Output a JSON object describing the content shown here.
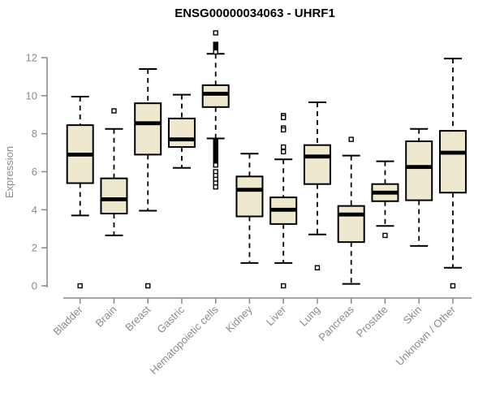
{
  "chart_data": {
    "type": "boxplot",
    "title": "ENSG00000034063 - UHRF1",
    "ylabel": "Expression",
    "xlabel": "",
    "ylim": [
      0,
      12
    ],
    "yticks": [
      0,
      2,
      4,
      6,
      8,
      10,
      12
    ],
    "grid": false,
    "legend": "none",
    "categories": [
      "Bladder",
      "Brain",
      "Breast",
      "Gastric",
      "Hematopoietic cells",
      "Kidney",
      "Liver",
      "Lung",
      "Pancreas",
      "Prostate",
      "Skin",
      "Unknown / Other"
    ],
    "series": [
      {
        "name": "Bladder",
        "whisker_low": 3.7,
        "q1": 5.4,
        "median": 6.9,
        "q3": 8.45,
        "whisker_high": 9.95,
        "outliers": [
          0
        ]
      },
      {
        "name": "Brain",
        "whisker_low": 2.65,
        "q1": 3.8,
        "median": 4.55,
        "q3": 5.65,
        "whisker_high": 8.25,
        "outliers": [
          9.2
        ]
      },
      {
        "name": "Breast",
        "whisker_low": 3.95,
        "q1": 6.9,
        "median": 8.55,
        "q3": 9.6,
        "whisker_high": 11.4,
        "outliers": [
          0
        ]
      },
      {
        "name": "Gastric",
        "whisker_low": 6.2,
        "q1": 7.3,
        "median": 7.7,
        "q3": 8.8,
        "whisker_high": 10.05,
        "outliers": []
      },
      {
        "name": "Hematopoietic cells",
        "whisker_low": 7.75,
        "q1": 9.4,
        "median": 10.1,
        "q3": 10.55,
        "whisker_high": 12.2,
        "outliers": [
          13.3,
          12.7,
          12.65,
          12.6,
          12.55,
          12.5,
          12.45,
          12.4,
          12.35,
          12.3,
          7.6,
          7.55,
          7.5,
          7.45,
          7.4,
          7.35,
          7.3,
          7.25,
          7.2,
          7.15,
          7.1,
          7.05,
          7.0,
          6.95,
          6.9,
          6.85,
          6.8,
          6.75,
          6.7,
          6.65,
          6.6,
          6.55,
          6.5,
          6.45,
          6.4,
          6.35,
          6.0,
          5.8,
          5.6,
          5.4,
          5.2
        ]
      },
      {
        "name": "Kidney",
        "whisker_low": 1.2,
        "q1": 3.65,
        "median": 5.05,
        "q3": 5.75,
        "whisker_high": 6.95,
        "outliers": []
      },
      {
        "name": "Liver",
        "whisker_low": 1.2,
        "q1": 3.25,
        "median": 4.0,
        "q3": 4.65,
        "whisker_high": 6.65,
        "outliers": [
          8.95,
          8.85,
          8.3,
          8.2,
          7.3,
          7.05,
          0
        ]
      },
      {
        "name": "Lung",
        "whisker_low": 2.7,
        "q1": 5.35,
        "median": 6.8,
        "q3": 7.4,
        "whisker_high": 9.65,
        "outliers": [
          0.95
        ]
      },
      {
        "name": "Pancreas",
        "whisker_low": 0.1,
        "q1": 2.3,
        "median": 3.75,
        "q3": 4.2,
        "whisker_high": 6.85,
        "outliers": [
          7.7
        ]
      },
      {
        "name": "Prostate",
        "whisker_low": 3.15,
        "q1": 4.45,
        "median": 4.9,
        "q3": 5.35,
        "whisker_high": 6.55,
        "outliers": [
          2.65
        ]
      },
      {
        "name": "Skin",
        "whisker_low": 2.1,
        "q1": 4.5,
        "median": 6.25,
        "q3": 7.6,
        "whisker_high": 8.25,
        "outliers": []
      },
      {
        "name": "Unknown / Other",
        "whisker_low": 0.95,
        "q1": 4.9,
        "median": 7.0,
        "q3": 8.15,
        "whisker_high": 11.95,
        "outliers": [
          0
        ]
      }
    ]
  },
  "colors": {
    "box_fill": "#ede8ce",
    "box_stroke": "#000000",
    "median": "#000000",
    "whisker": "#000000",
    "outlier_stroke": "#000000",
    "outlier_fill": "#ffffff",
    "axis": "#878787",
    "axis_text": "#8a8a8a",
    "title_text": "#000000",
    "background": "#ffffff"
  }
}
